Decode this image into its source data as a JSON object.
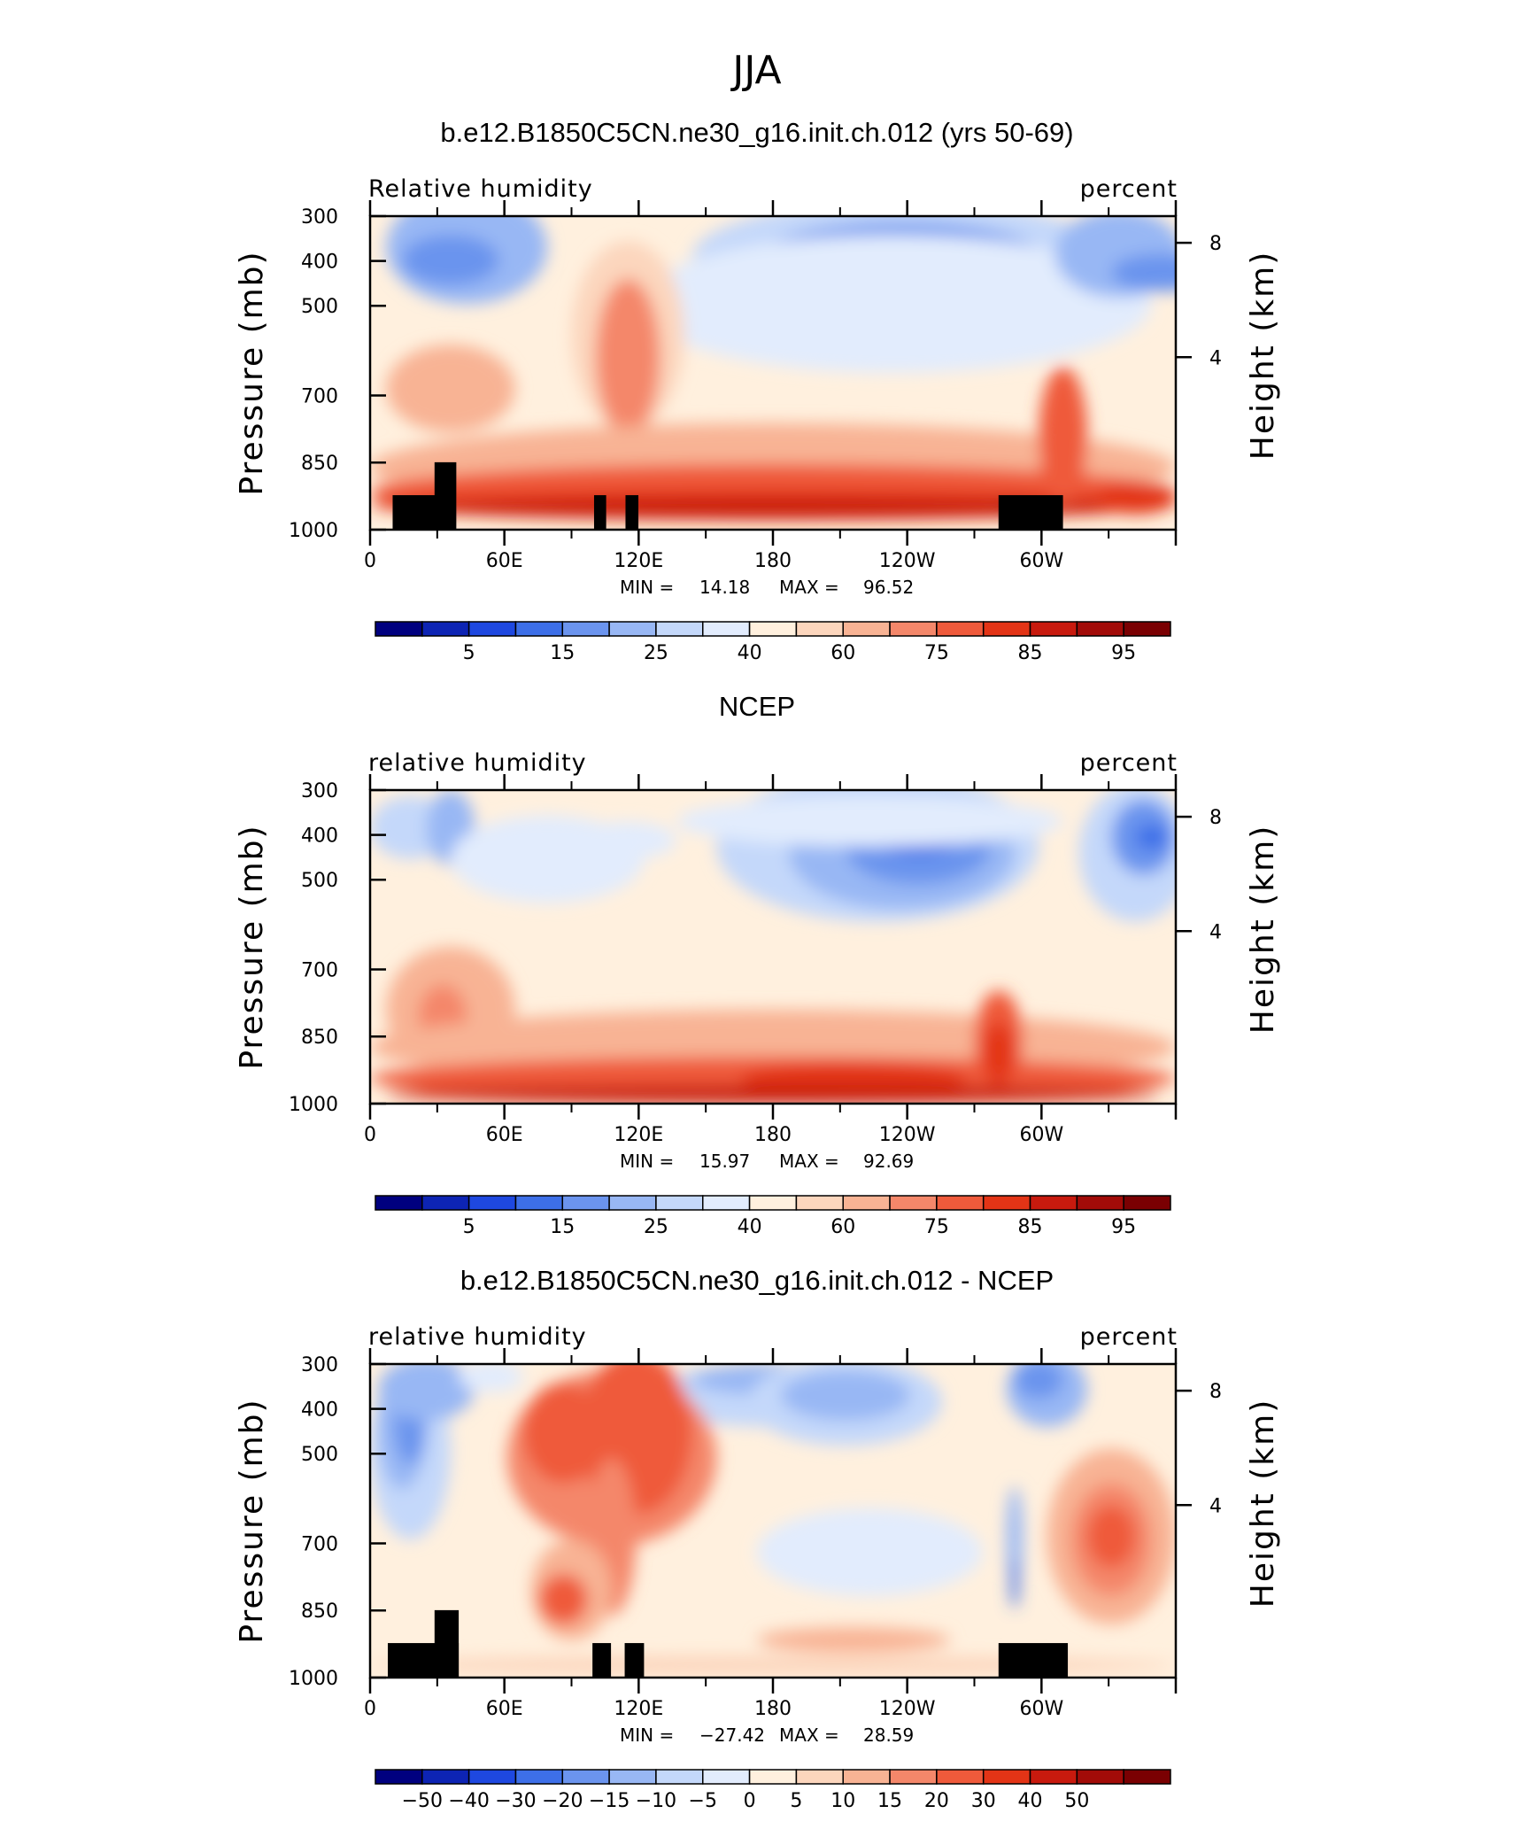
{
  "figure": {
    "title": "JJA"
  },
  "colors": {
    "rh_scale": [
      "#00007f",
      "#0d24b4",
      "#1e48e0",
      "#3d6fe8",
      "#6b94ee",
      "#98b7f4",
      "#c4d8fa",
      "#e2ecfd",
      "#fff0de",
      "#fcd6bd",
      "#f8b394",
      "#f4876a",
      "#ef5a3b",
      "#e33416",
      "#c81a0e",
      "#a20b08",
      "#7a0002"
    ],
    "land": "#000000"
  },
  "chart_data": [
    {
      "type": "contour",
      "title": "b.e12.B1850C5CN.ne30_g16.init.ch.012 (yrs 50-69)",
      "left_label": "Relative  humidity",
      "right_label": "percent",
      "ylabel": "Pressure  (mb)",
      "y2label": "Height  (km)",
      "x_ticks": [
        "0",
        "60E",
        "120E",
        "180",
        "120W",
        "60W"
      ],
      "y_ticks": [
        "300",
        "400",
        "500",
        "700",
        "850",
        "1000"
      ],
      "y2_ticks": [
        "8",
        "4"
      ],
      "min_label": "MIN =",
      "min": "14.18",
      "max_label": "MAX =",
      "max": "96.52",
      "colorbar_labels": [
        "5",
        "15",
        "25",
        "40",
        "60",
        "75",
        "85",
        "95"
      ]
    },
    {
      "type": "contour",
      "title": "NCEP",
      "left_label": "relative  humidity",
      "right_label": "percent",
      "ylabel": "Pressure  (mb)",
      "y2label": "Height  (km)",
      "x_ticks": [
        "0",
        "60E",
        "120E",
        "180",
        "120W",
        "60W"
      ],
      "y_ticks": [
        "300",
        "400",
        "500",
        "700",
        "850",
        "1000"
      ],
      "y2_ticks": [
        "8",
        "4"
      ],
      "min_label": "MIN =",
      "min": "15.97",
      "max_label": "MAX =",
      "max": "92.69",
      "colorbar_labels": [
        "5",
        "15",
        "25",
        "40",
        "60",
        "75",
        "85",
        "95"
      ]
    },
    {
      "type": "contour",
      "title": "b.e12.B1850C5CN.ne30_g16.init.ch.012 - NCEP",
      "left_label": "relative  humidity",
      "right_label": "percent",
      "ylabel": "Pressure  (mb)",
      "y2label": "Height  (km)",
      "x_ticks": [
        "0",
        "60E",
        "120E",
        "180",
        "120W",
        "60W"
      ],
      "y_ticks": [
        "300",
        "400",
        "500",
        "700",
        "850",
        "1000"
      ],
      "y2_ticks": [
        "8",
        "4"
      ],
      "min_label": "MIN =",
      "min": "−27.42",
      "max_label": "MAX =",
      "max": "28.59",
      "colorbar_labels": [
        "−50",
        "−40",
        "−30",
        "−20",
        "−15",
        "−10",
        "−5",
        "0",
        "5",
        "10",
        "15",
        "20",
        "30",
        "40",
        "50"
      ]
    }
  ]
}
